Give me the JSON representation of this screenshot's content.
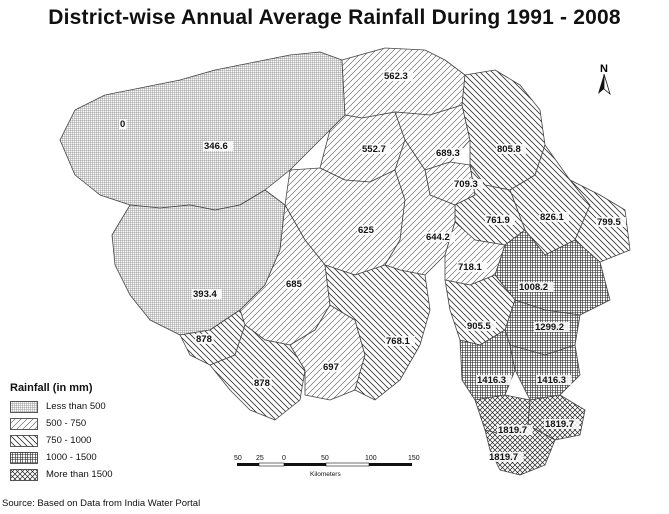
{
  "title": "District-wise Annual Average Rainfall During 1991 - 2008",
  "districts": [
    {
      "value": "0",
      "category": "lt500"
    },
    {
      "value": "346.6",
      "category": "lt500"
    },
    {
      "value": "562.3",
      "category": "r500"
    },
    {
      "value": "552.7",
      "category": "r500"
    },
    {
      "value": "689.3",
      "category": "r500"
    },
    {
      "value": "805.8",
      "category": "r750"
    },
    {
      "value": "709.3",
      "category": "r500"
    },
    {
      "value": "826.1",
      "category": "r750"
    },
    {
      "value": "799.5",
      "category": "r750"
    },
    {
      "value": "761.9",
      "category": "r750"
    },
    {
      "value": "625",
      "category": "r500"
    },
    {
      "value": "644.2",
      "category": "r500"
    },
    {
      "value": "718.1",
      "category": "r500"
    },
    {
      "value": "1008.2",
      "category": "r1000"
    },
    {
      "value": "393.4",
      "category": "lt500"
    },
    {
      "value": "685",
      "category": "r500"
    },
    {
      "value": "905.5",
      "category": "r750"
    },
    {
      "value": "1299.2",
      "category": "r1000"
    },
    {
      "value": "878",
      "category": "r750"
    },
    {
      "value": "878",
      "category": "r750"
    },
    {
      "value": "697",
      "category": "r500"
    },
    {
      "value": "768.1",
      "category": "r750"
    },
    {
      "value": "1416.3",
      "category": "r1000"
    },
    {
      "value": "1416.3",
      "category": "r1000"
    },
    {
      "value": "1819.7",
      "category": "gt1500"
    },
    {
      "value": "1819.7",
      "category": "gt1500"
    },
    {
      "value": "1819.7",
      "category": "gt1500"
    }
  ],
  "legend": {
    "title": "Rainfall (in mm)",
    "items": [
      {
        "label": "Less than 500",
        "pattern": "lt500"
      },
      {
        "label": "500 - 750",
        "pattern": "r500"
      },
      {
        "label": "750 - 1000",
        "pattern": "r750"
      },
      {
        "label": "1000 - 1500",
        "pattern": "r1000"
      },
      {
        "label": "More than 1500",
        "pattern": "gt1500"
      }
    ]
  },
  "scale": {
    "ticks": [
      "50",
      "25",
      "0",
      "50",
      "100",
      "150"
    ],
    "unit": "Kilometers"
  },
  "north_label": "N",
  "source": "Source: Based on Data from India Water Portal"
}
